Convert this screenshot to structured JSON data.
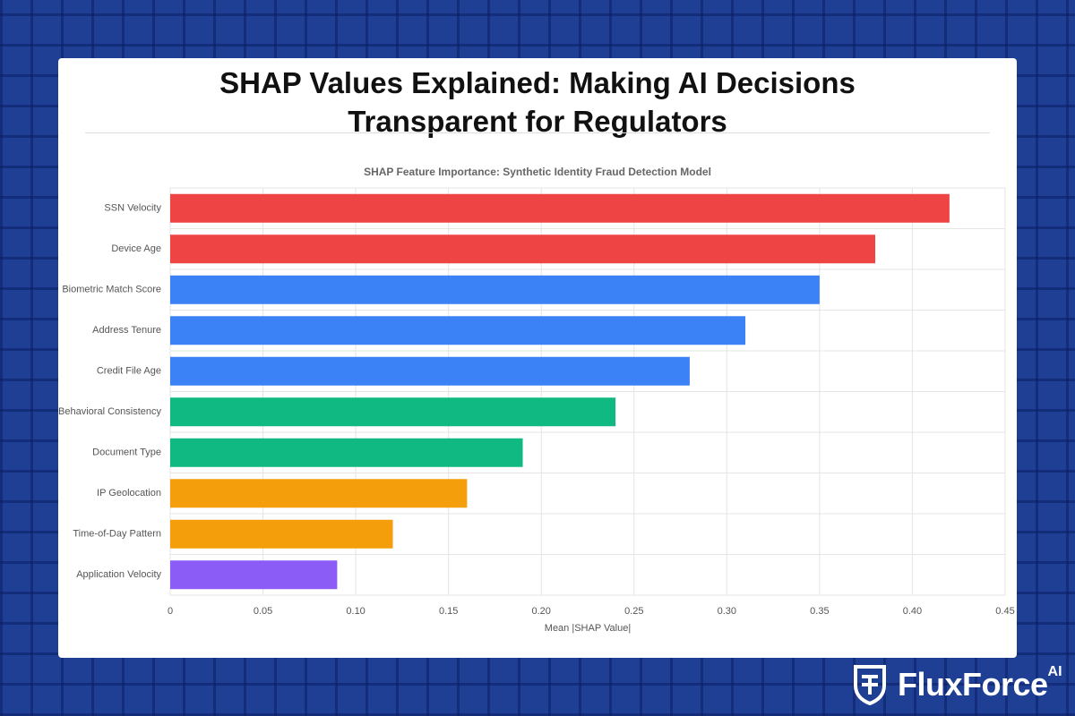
{
  "page_title": "SHAP Values Explained: Making AI Decisions Transparent for Regulators",
  "chart_data": {
    "type": "hbar",
    "title": "SHAP Feature Importance: Synthetic Identity Fraud Detection Model",
    "x_label": "Mean |SHAP Value|",
    "categories": [
      "SSN Velocity",
      "Device Age",
      "Biometric Match Score",
      "Address Tenure",
      "Credit File Age",
      "Behavioral Consistency",
      "Document Type",
      "IP Geolocation",
      "Time-of-Day Pattern",
      "Application Velocity"
    ],
    "values": [
      0.42,
      0.38,
      0.35,
      0.31,
      0.28,
      0.24,
      0.19,
      0.16,
      0.12,
      0.09
    ],
    "colors": [
      "#ef4444",
      "#ef4444",
      "#3b82f6",
      "#3b82f6",
      "#3b82f6",
      "#10b981",
      "#10b981",
      "#f59e0b",
      "#f59e0b",
      "#8b5cf6"
    ],
    "xlim": [
      0,
      0.45
    ],
    "xticks": [
      0,
      0.05,
      {
        "value": 0.1,
        "label": "0.10"
      },
      0.15,
      {
        "value": 0.2,
        "label": "0.20"
      },
      0.25,
      {
        "value": 0.3,
        "label": "0.30"
      },
      0.35,
      {
        "value": 0.4,
        "label": "0.40"
      },
      0.45
    ],
    "grid": true
  },
  "brand": {
    "name": "FluxForce",
    "suffix": "AI"
  }
}
